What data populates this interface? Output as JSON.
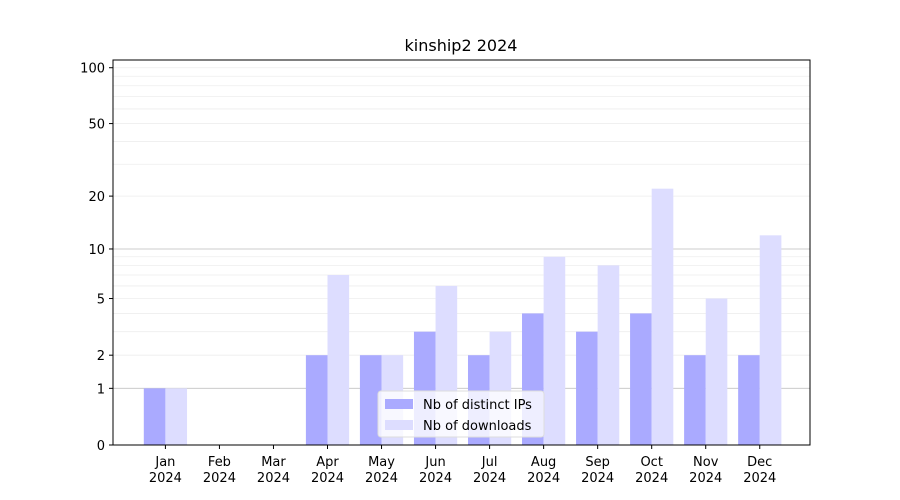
{
  "chart_data": {
    "type": "bar",
    "title": "kinship2 2024",
    "xlabel": "",
    "ylabel": "",
    "categories": [
      "Jan\n2024",
      "Feb\n2024",
      "Mar\n2024",
      "Apr\n2024",
      "May\n2024",
      "Jun\n2024",
      "Jul\n2024",
      "Aug\n2024",
      "Sep\n2024",
      "Oct\n2024",
      "Nov\n2024",
      "Dec\n2024"
    ],
    "series": [
      {
        "name": "Nb of distinct IPs",
        "color": "#aaaaff",
        "values": [
          1,
          0,
          0,
          2,
          2,
          3,
          2,
          4,
          3,
          4,
          2,
          2
        ]
      },
      {
        "name": "Nb of downloads",
        "color": "#ddddff",
        "values": [
          1,
          0,
          0,
          7,
          2,
          6,
          3,
          9,
          8,
          22,
          5,
          12
        ]
      }
    ],
    "y_scale": "log(1+y)",
    "ylim": [
      0,
      110
    ],
    "y_ticks": [
      0,
      1,
      2,
      5,
      10,
      20,
      50,
      100
    ],
    "y_ticks_labels": [
      "0",
      "1",
      "2",
      "5",
      "10",
      "20",
      "50",
      "100"
    ],
    "grid": {
      "major_lines": [
        1,
        10
      ],
      "minor_lines": true
    },
    "legend_position": "bottom-center"
  }
}
